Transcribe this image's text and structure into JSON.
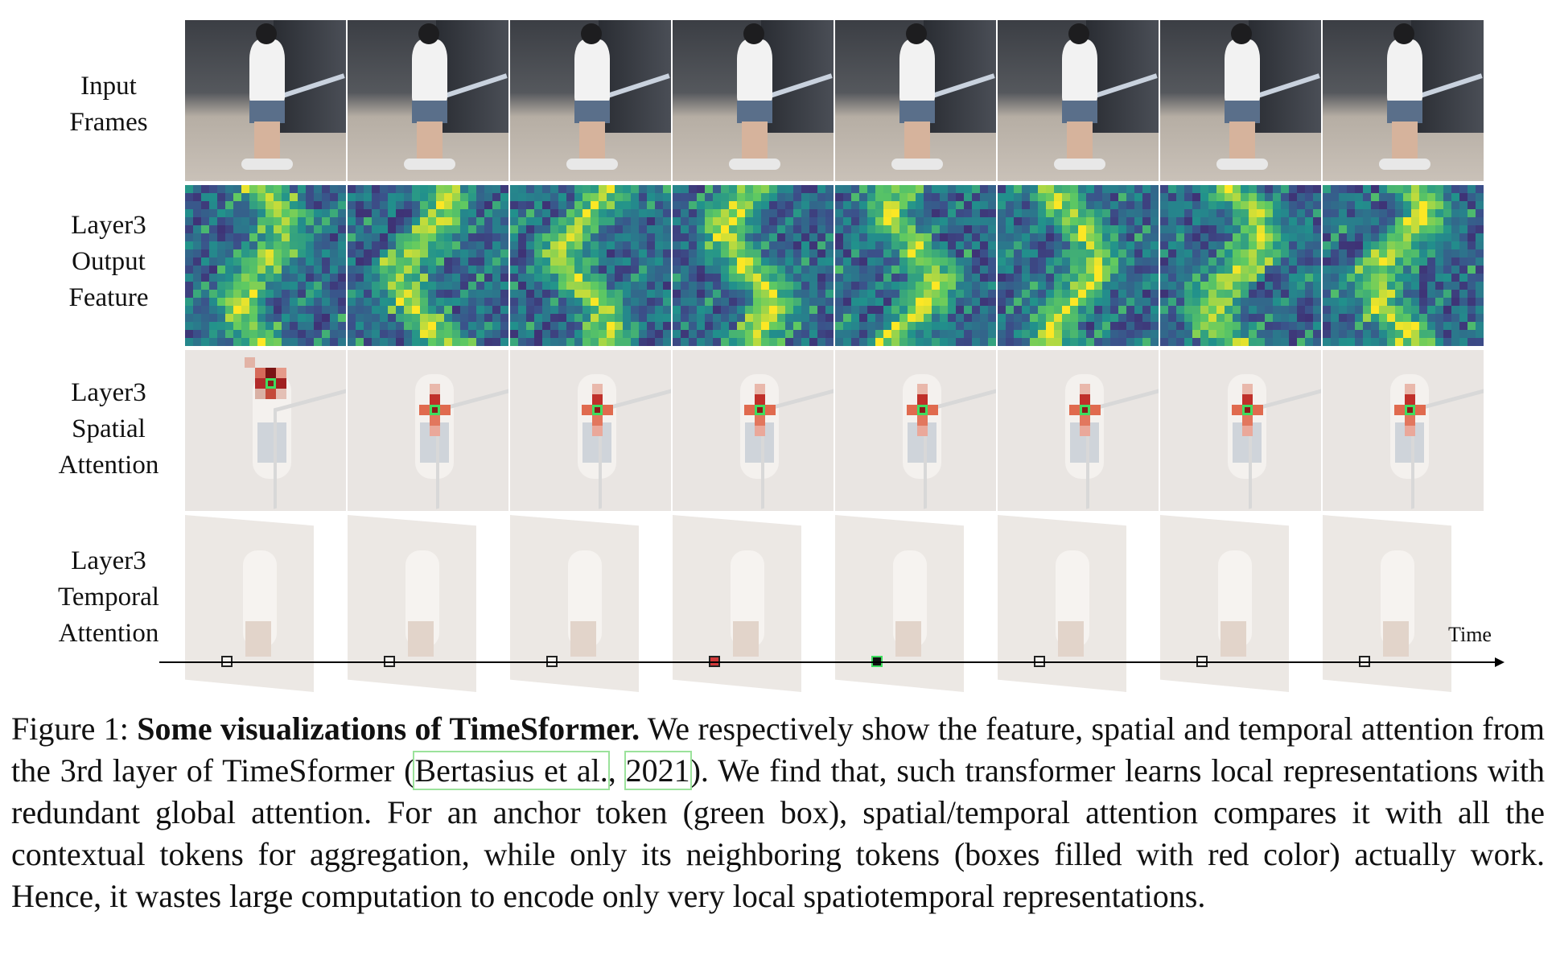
{
  "rows": [
    {
      "lines": [
        "Input",
        "Frames"
      ]
    },
    {
      "lines": [
        "Layer3",
        "Output",
        "Feature"
      ]
    },
    {
      "lines": [
        "Layer3",
        "Spatial",
        "Attention"
      ]
    },
    {
      "lines": [
        "Layer3",
        "Temporal",
        "Attention"
      ]
    }
  ],
  "time_label": "Time",
  "colors": {
    "anchor_box": "#3fdd5f",
    "attention_red": "#d23a3a",
    "feature_low": "#3b1d70",
    "feature_high": "#f5e33a"
  },
  "caption": {
    "prefix": "Figure 1: ",
    "bold": "Some visualizations of TimeSformer.",
    "text1": " We respectively show the feature, spatial and temporal attention from the 3rd layer of TimeSformer (",
    "cite_author": "Bertasius et al.",
    "cite_sep": ", ",
    "cite_year": "2021",
    "text2": "). We find that, such transformer learns local representations with redundant global attention. For an anchor token (green box), spatial/temporal attention compares it with all the contextual tokens for aggregation, while only its neighboring tokens (boxes filled with red color) actually work. Hence, it wastes large computation to encode only very local spatiotemporal representations."
  }
}
